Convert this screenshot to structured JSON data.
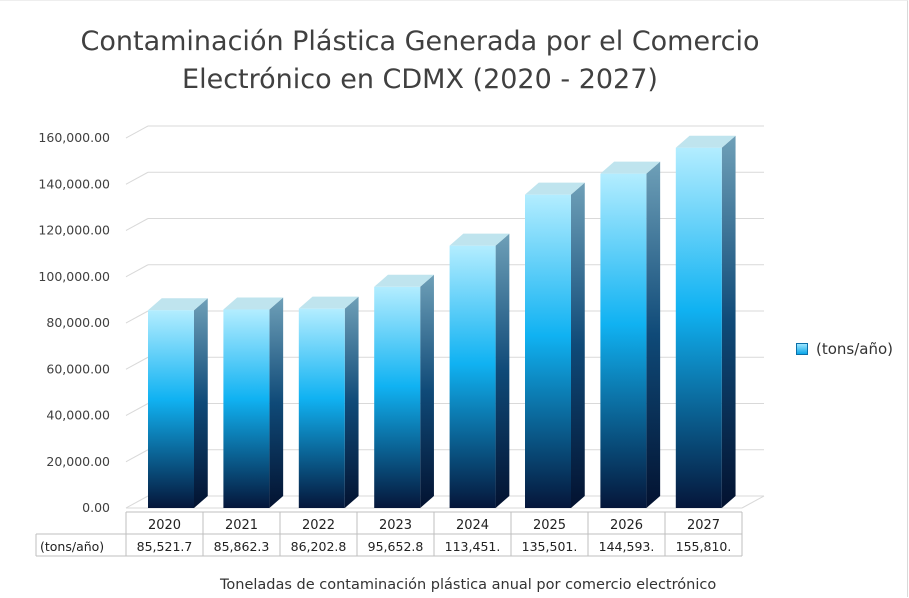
{
  "chart_data": {
    "type": "bar",
    "title_line1": "Contaminación Plástica Generada por el Comercio",
    "title_line2": "Electrónico en CDMX (2020 - 2027)",
    "categories": [
      "2020",
      "2021",
      "2022",
      "2023",
      "2024",
      "2025",
      "2026",
      "2027"
    ],
    "series": [
      {
        "name": "(tons/año)",
        "values": [
          85521.7,
          85862.3,
          86202.8,
          95652.8,
          113451,
          135501,
          144593,
          155810
        ],
        "table_labels": [
          "85,521.7",
          "85,862.3",
          "86,202.8",
          "95,652.8",
          "113,451.",
          "135,501.",
          "144,593.",
          "155,810."
        ]
      }
    ],
    "y_ticks": [
      "0.00",
      "20,000.00",
      "40,000.00",
      "60,000.00",
      "80,000.00",
      "100,000.00",
      "120,000.00",
      "140,000.00",
      "160,000.00"
    ],
    "ylim": [
      0,
      160000
    ],
    "y_step": 20000,
    "grid": true,
    "legend_position": "right",
    "three_d": true,
    "caption": "Toneladas de contaminación plástica anual por comercio electrónico",
    "colors": {
      "bar_top": "#b3edff",
      "bar_mid": "#10b2f2",
      "bar_bottom": "#05163a",
      "side_light": "#6fa0b8",
      "side_dark": "#031230",
      "cap": "#bfe4ee",
      "grid": "#d9d9d9",
      "text": "#404040"
    }
  }
}
